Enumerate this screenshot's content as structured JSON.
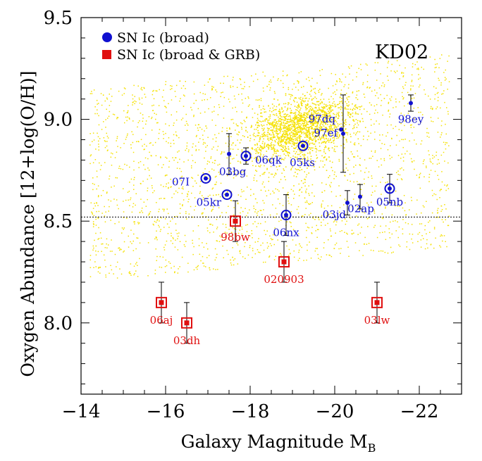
{
  "chart_data": {
    "type": "scatter",
    "title": "KD02",
    "xlabel": "Galaxy Magnitude M",
    "xlabel_subscript": "B",
    "ylabel": "Oxygen Abundance [12+log(O/H)]",
    "xlim": [
      -14,
      -23
    ],
    "ylim": [
      7.65,
      9.5
    ],
    "xticks": [
      -14,
      -16,
      -18,
      -20,
      -22
    ],
    "xtick_labels": [
      "−14",
      "−16",
      "−18",
      "−20",
      "−22"
    ],
    "yticks": [
      8.0,
      8.5,
      9.0,
      9.5
    ],
    "ytick_labels": [
      "8.0",
      "8.5",
      "9.0",
      "9.5"
    ],
    "reference_line_y": 8.52,
    "colors": {
      "background_points": "#f5e100",
      "broad": "#1010d0",
      "grb": "#e01010"
    },
    "legend": [
      {
        "label": "SN Ic (broad)",
        "color": "#1010d0",
        "marker": "circle"
      },
      {
        "label": "SN Ic (broad & GRB)",
        "color": "#e01010",
        "marker": "square"
      }
    ],
    "background_cloud": {
      "description_label": "",
      "center_x": -19.2,
      "center_y": 8.97
    },
    "series": [
      {
        "name": "SN Ic (broad)",
        "points": [
          {
            "label": "98ey",
            "x": -21.8,
            "y": 9.08,
            "err": 0.04,
            "ring": false
          },
          {
            "label": "97dq",
            "x": -20.15,
            "y": 8.95,
            "err": 0.0,
            "ring": false
          },
          {
            "label": "97ef",
            "x": -20.2,
            "y": 8.93,
            "err": 0.19,
            "ring": false
          },
          {
            "label": "05ks",
            "x": -19.25,
            "y": 8.87,
            "err": 0.0,
            "ring": true
          },
          {
            "label": "06qk",
            "x": -17.9,
            "y": 8.82,
            "err": 0.04,
            "ring": true
          },
          {
            "label": "03bg",
            "x": -17.5,
            "y": 8.83,
            "err": 0.1,
            "ring": false
          },
          {
            "label": "07I",
            "x": -16.95,
            "y": 8.71,
            "err": 0.0,
            "ring": true
          },
          {
            "label": "05kr",
            "x": -17.45,
            "y": 8.63,
            "err": 0.0,
            "ring": true
          },
          {
            "label": "06nx",
            "x": -18.85,
            "y": 8.53,
            "err": 0.1,
            "ring": true
          },
          {
            "label": "03jd",
            "x": -20.3,
            "y": 8.59,
            "err": 0.06,
            "ring": false
          },
          {
            "label": "02ap",
            "x": -20.6,
            "y": 8.62,
            "err": 0.06,
            "ring": false
          },
          {
            "label": "05nb",
            "x": -21.3,
            "y": 8.66,
            "err": 0.07,
            "ring": true
          }
        ]
      },
      {
        "name": "SN Ic (broad & GRB)",
        "points": [
          {
            "label": "98bw",
            "x": -17.65,
            "y": 8.5,
            "err": 0.1
          },
          {
            "label": "020903",
            "x": -18.8,
            "y": 8.3,
            "err": 0.1
          },
          {
            "label": "06aj",
            "x": -15.9,
            "y": 8.1,
            "err": 0.1
          },
          {
            "label": "03dh",
            "x": -16.5,
            "y": 8.0,
            "err": 0.1
          },
          {
            "label": "03lw",
            "x": -21.0,
            "y": 8.1,
            "err": 0.1
          }
        ]
      }
    ]
  }
}
